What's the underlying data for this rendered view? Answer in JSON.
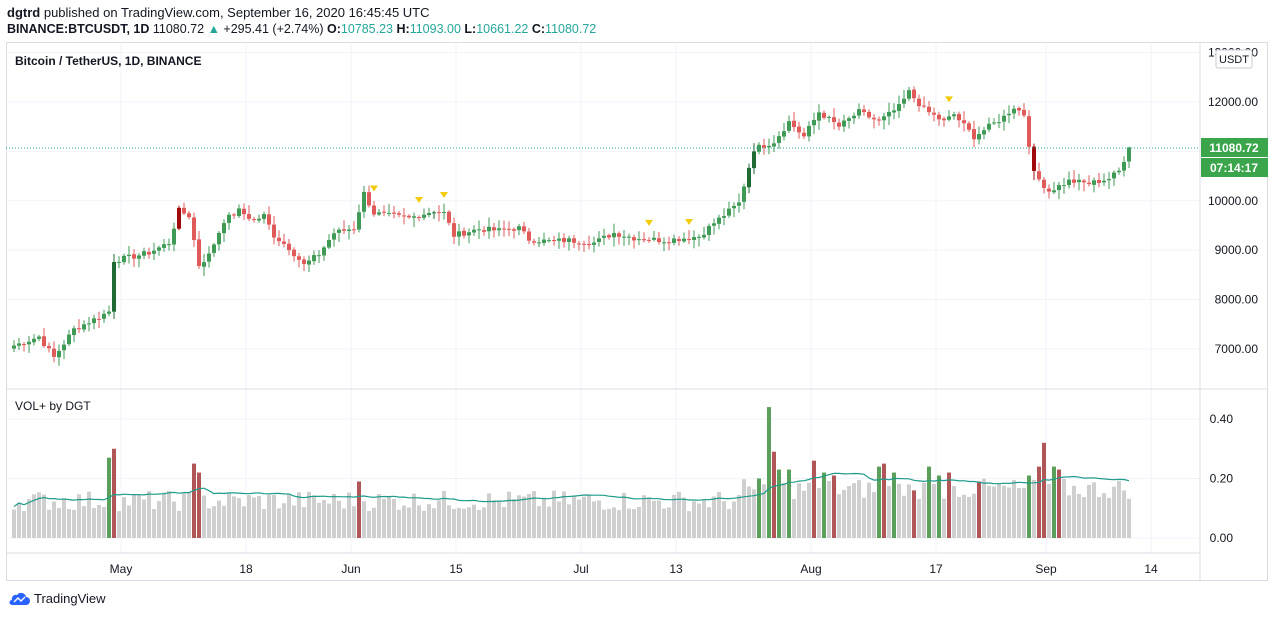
{
  "header": {
    "user": "dgtrd",
    "published": "published on TradingView.com, September 16, 2020 16:45:45 UTC",
    "symbol": "BINANCE:BTCUSDT, 1D",
    "last": "11080.72",
    "change": "+295.41 (+2.74%)",
    "o_label": "O:",
    "o_value": "10785.23",
    "h_label": "H:",
    "h_value": "11093.00",
    "l_label": "L:",
    "l_value": "10661.22",
    "c_label": "C:",
    "c_value": "11080.72"
  },
  "price_pane": {
    "title": "Bitcoin / TetherUS, 1D, BINANCE",
    "currency_badge": "USDT",
    "last_price_label": "11080.72",
    "countdown_label": "07:14:17"
  },
  "volume_pane": {
    "title": "VOL+ by DGT"
  },
  "footer": {
    "brand": "TradingView"
  },
  "colors": {
    "up": "#3f9a55",
    "down": "#e15a5a",
    "up_strong": "#1f6b33",
    "down_strong": "#a10a0a",
    "vol_gray": "#cfcfcf",
    "vol_green": "#5aa05a",
    "vol_red": "#b05656",
    "vol_ma": "#1e9b8a",
    "marker": "#f2cc0c",
    "last_price_bg": "#3aa54b"
  },
  "chart_data": {
    "type": "candlestick",
    "series_description": "BTCUSDT daily OHLC with volume histogram and volume moving average",
    "x_tick_labels": [
      "May",
      "18",
      "Jun",
      "15",
      "Jul",
      "13",
      "Aug",
      "17",
      "Sep",
      "14"
    ],
    "y_price_ticks": [
      "13000.00",
      "12000.00",
      "11000.00",
      "10000.00",
      "9000.00",
      "8000.00",
      "7000.00"
    ],
    "y_price_range": [
      6500,
      13000
    ],
    "y_volume_ticks": [
      "0.40",
      "0.20",
      "0.00"
    ],
    "y_volume_range": [
      0,
      0.45
    ],
    "last_close": 11080.72,
    "waypoints_close": [
      [
        0,
        7070
      ],
      [
        5,
        7250
      ],
      [
        8,
        6830
      ],
      [
        12,
        7400
      ],
      [
        17,
        7650
      ],
      [
        19,
        7760
      ],
      [
        20,
        8800
      ],
      [
        23,
        8850
      ],
      [
        27,
        8950
      ],
      [
        31,
        9150
      ],
      [
        33,
        9800
      ],
      [
        35,
        9700
      ],
      [
        37,
        8700
      ],
      [
        39,
        8900
      ],
      [
        42,
        9600
      ],
      [
        45,
        9800
      ],
      [
        48,
        9600
      ],
      [
        50,
        9700
      ],
      [
        52,
        9300
      ],
      [
        55,
        9050
      ],
      [
        58,
        8700
      ],
      [
        61,
        8920
      ],
      [
        64,
        9350
      ],
      [
        68,
        9450
      ],
      [
        70,
        10150
      ],
      [
        72,
        9750
      ],
      [
        75,
        9700
      ],
      [
        79,
        9650
      ],
      [
        84,
        9800
      ],
      [
        86,
        9750
      ],
      [
        88,
        9300
      ],
      [
        91,
        9380
      ],
      [
        93,
        9430
      ],
      [
        97,
        9400
      ],
      [
        101,
        9450
      ],
      [
        103,
        9220
      ],
      [
        107,
        9180
      ],
      [
        111,
        9200
      ],
      [
        116,
        9150
      ],
      [
        120,
        9350
      ],
      [
        124,
        9250
      ],
      [
        130,
        9200
      ],
      [
        137,
        9280
      ],
      [
        140,
        9550
      ],
      [
        145,
        9950
      ],
      [
        148,
        11050
      ],
      [
        152,
        11200
      ],
      [
        155,
        11600
      ],
      [
        158,
        11300
      ],
      [
        161,
        11800
      ],
      [
        165,
        11500
      ],
      [
        169,
        11800
      ],
      [
        173,
        11600
      ],
      [
        177,
        11900
      ],
      [
        179,
        12200
      ],
      [
        182,
        11850
      ],
      [
        186,
        11600
      ],
      [
        188,
        11750
      ],
      [
        192,
        11300
      ],
      [
        195,
        11500
      ],
      [
        198,
        11700
      ],
      [
        200,
        11900
      ],
      [
        202,
        11750
      ],
      [
        204,
        10550
      ],
      [
        207,
        10200
      ],
      [
        211,
        10400
      ],
      [
        215,
        10350
      ],
      [
        219,
        10450
      ],
      [
        221,
        10600
      ],
      [
        222,
        10785
      ],
      [
        223,
        11080
      ]
    ],
    "markers_at_index": [
      72,
      81,
      86,
      127,
      135,
      187
    ],
    "strong_candles_at_index": [
      {
        "i": 20,
        "dir": "up"
      },
      {
        "i": 33,
        "dir": "down"
      },
      {
        "i": 84,
        "dir": "up"
      },
      {
        "i": 147,
        "dir": "up"
      },
      {
        "i": 148,
        "dir": "up"
      },
      {
        "i": 204,
        "dir": "down"
      }
    ],
    "volume_highlight": [
      {
        "i": 19,
        "c": "green",
        "v": 0.27
      },
      {
        "i": 20,
        "c": "red",
        "v": 0.3
      },
      {
        "i": 36,
        "c": "red",
        "v": 0.25
      },
      {
        "i": 37,
        "c": "red",
        "v": 0.22
      },
      {
        "i": 69,
        "c": "red",
        "v": 0.19
      },
      {
        "i": 149,
        "c": "green",
        "v": 0.2
      },
      {
        "i": 151,
        "c": "green",
        "v": 0.44
      },
      {
        "i": 152,
        "c": "red",
        "v": 0.29
      },
      {
        "i": 153,
        "c": "green",
        "v": 0.23
      },
      {
        "i": 155,
        "c": "green",
        "v": 0.23
      },
      {
        "i": 160,
        "c": "red",
        "v": 0.26
      },
      {
        "i": 162,
        "c": "green",
        "v": 0.22
      },
      {
        "i": 164,
        "c": "red",
        "v": 0.21
      },
      {
        "i": 173,
        "c": "green",
        "v": 0.24
      },
      {
        "i": 174,
        "c": "red",
        "v": 0.25
      },
      {
        "i": 176,
        "c": "green",
        "v": 0.22
      },
      {
        "i": 180,
        "c": "red",
        "v": 0.16
      },
      {
        "i": 183,
        "c": "green",
        "v": 0.24
      },
      {
        "i": 185,
        "c": "green",
        "v": 0.21
      },
      {
        "i": 187,
        "c": "red",
        "v": 0.22
      },
      {
        "i": 193,
        "c": "red",
        "v": 0.19
      },
      {
        "i": 203,
        "c": "green",
        "v": 0.21
      },
      {
        "i": 205,
        "c": "red",
        "v": 0.24
      },
      {
        "i": 206,
        "c": "red",
        "v": 0.32
      },
      {
        "i": 208,
        "c": "green",
        "v": 0.24
      },
      {
        "i": 209,
        "c": "red",
        "v": 0.23
      }
    ]
  }
}
